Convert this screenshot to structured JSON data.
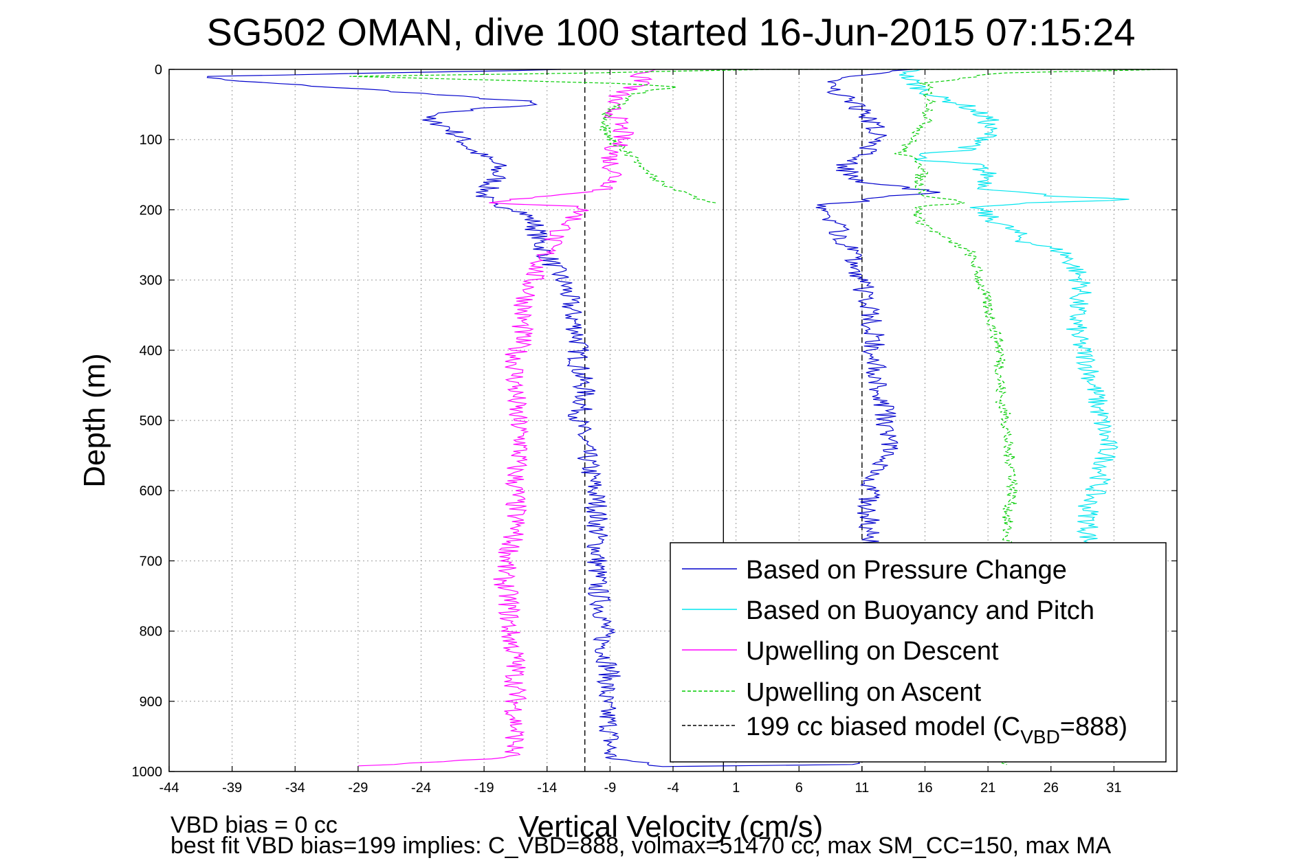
{
  "chart_data": {
    "type": "line",
    "title": "SG502 OMAN, dive 100 started 16-Jun-2015 07:15:24",
    "xlabel": "Vertical Velocity (cm/s)",
    "ylabel": "Depth (m)",
    "xlim": [
      -44,
      36
    ],
    "ylim": [
      1000,
      0
    ],
    "x_ticks": [
      -44,
      -39,
      -34,
      -29,
      -24,
      -19,
      -14,
      -9,
      -4,
      1,
      6,
      11,
      16,
      21,
      26,
      31
    ],
    "y_ticks": [
      0,
      100,
      200,
      300,
      400,
      500,
      600,
      700,
      800,
      900,
      1000
    ],
    "grid": true,
    "legend_position": "bottom-right",
    "reference_lines": [
      {
        "x": 0,
        "style": "solid",
        "color": "#000000"
      },
      {
        "x": -11,
        "style": "dashed",
        "color": "#000000"
      },
      {
        "x": 11,
        "style": "dashed",
        "color": "#000000"
      }
    ],
    "series": [
      {
        "name": "Based on Pressure Change",
        "color": "#0000cc",
        "style": "solid",
        "points": [
          [
            -12,
            0
          ],
          [
            -41,
            10
          ],
          [
            -40,
            15
          ],
          [
            -34,
            22
          ],
          [
            -27,
            30
          ],
          [
            -20,
            40
          ],
          [
            -16,
            45
          ],
          [
            -15,
            50
          ],
          [
            -19,
            55
          ],
          [
            -22,
            62
          ],
          [
            -24,
            72
          ],
          [
            -22,
            80
          ],
          [
            -21,
            95
          ],
          [
            -20,
            115
          ],
          [
            -18,
            135
          ],
          [
            -18,
            155
          ],
          [
            -19,
            175
          ],
          [
            -19,
            190
          ],
          [
            -16,
            200
          ],
          [
            -15,
            220
          ],
          [
            -14.5,
            250
          ],
          [
            -13.5,
            280
          ],
          [
            -12.5,
            310
          ],
          [
            -12,
            350
          ],
          [
            -11.5,
            380
          ],
          [
            -11.5,
            420
          ],
          [
            -11,
            460
          ],
          [
            -11.5,
            500
          ],
          [
            -11,
            540
          ],
          [
            -10.5,
            580
          ],
          [
            -10,
            620
          ],
          [
            -10,
            660
          ],
          [
            -10,
            700
          ],
          [
            -10,
            740
          ],
          [
            -9.5,
            780
          ],
          [
            -9.5,
            820
          ],
          [
            -9,
            860
          ],
          [
            -9.5,
            900
          ],
          [
            -9,
            940
          ],
          [
            -9,
            980
          ],
          [
            -5,
            993
          ],
          [
            10,
            990
          ],
          [
            12,
            985
          ],
          [
            12,
            940
          ],
          [
            12.5,
            900
          ],
          [
            12,
            860
          ],
          [
            13,
            820
          ],
          [
            13,
            780
          ],
          [
            12.5,
            740
          ],
          [
            12,
            700
          ],
          [
            11.5,
            660
          ],
          [
            11.5,
            620
          ],
          [
            12,
            580
          ],
          [
            13,
            540
          ],
          [
            13,
            500
          ],
          [
            12.5,
            460
          ],
          [
            12,
            420
          ],
          [
            12,
            380
          ],
          [
            11.5,
            340
          ],
          [
            11,
            300
          ],
          [
            10.5,
            270
          ],
          [
            9.5,
            240
          ],
          [
            8.5,
            210
          ],
          [
            7.5,
            195
          ],
          [
            14,
            180
          ],
          [
            17,
            175
          ],
          [
            15,
            170
          ],
          [
            11,
            160
          ],
          [
            9.5,
            140
          ],
          [
            11,
            120
          ],
          [
            12.5,
            100
          ],
          [
            12,
            80
          ],
          [
            11,
            60
          ],
          [
            10,
            40
          ],
          [
            8,
            25
          ],
          [
            9,
            12
          ],
          [
            15,
            0
          ]
        ]
      },
      {
        "name": "Based on Buoyancy and Pitch",
        "color": "#00e5ee",
        "style": "solid",
        "points": [
          [
            15,
            0
          ],
          [
            14.5,
            10
          ],
          [
            15.5,
            25
          ],
          [
            17,
            40
          ],
          [
            19,
            50
          ],
          [
            20,
            60
          ],
          [
            21,
            70
          ],
          [
            21,
            100
          ],
          [
            19,
            115
          ],
          [
            15.5,
            120
          ],
          [
            15.5,
            130
          ],
          [
            20,
            135
          ],
          [
            21,
            150
          ],
          [
            21,
            170
          ],
          [
            26,
            180
          ],
          [
            33,
            185
          ],
          [
            24,
            190
          ],
          [
            20,
            195
          ],
          [
            21,
            210
          ],
          [
            23,
            230
          ],
          [
            24,
            245
          ],
          [
            27,
            260
          ],
          [
            28,
            285
          ],
          [
            28.5,
            310
          ],
          [
            28,
            340
          ],
          [
            28,
            380
          ],
          [
            29,
            420
          ],
          [
            29.5,
            460
          ],
          [
            30,
            500
          ],
          [
            30.5,
            540
          ],
          [
            30,
            580
          ],
          [
            29,
            620
          ],
          [
            29,
            660
          ],
          [
            29,
            680
          ]
        ]
      },
      {
        "name": "Upwelling on Descent",
        "color": "#ff00ff",
        "style": "solid",
        "points": [
          [
            -5,
            0
          ],
          [
            -7,
            10
          ],
          [
            -6,
            20
          ],
          [
            -8,
            30
          ],
          [
            -9,
            50
          ],
          [
            -8.5,
            70
          ],
          [
            -8,
            90
          ],
          [
            -8.5,
            110
          ],
          [
            -9,
            130
          ],
          [
            -8.5,
            150
          ],
          [
            -9,
            170
          ],
          [
            -13,
            180
          ],
          [
            -17,
            185
          ],
          [
            -19,
            190
          ],
          [
            -11,
            195
          ],
          [
            -12,
            215
          ],
          [
            -13.5,
            240
          ],
          [
            -14,
            260
          ],
          [
            -15,
            290
          ],
          [
            -15.5,
            320
          ],
          [
            -16,
            350
          ],
          [
            -16,
            380
          ],
          [
            -16.5,
            410
          ],
          [
            -16.5,
            450
          ],
          [
            -16.5,
            490
          ],
          [
            -16,
            530
          ],
          [
            -16.5,
            570
          ],
          [
            -16.5,
            610
          ],
          [
            -16.5,
            650
          ],
          [
            -17,
            690
          ],
          [
            -17.5,
            720
          ],
          [
            -17,
            760
          ],
          [
            -17,
            800
          ],
          [
            -16.5,
            840
          ],
          [
            -16.5,
            880
          ],
          [
            -16.5,
            920
          ],
          [
            -16.5,
            960
          ],
          [
            -17,
            980
          ],
          [
            -29,
            992
          ]
        ]
      },
      {
        "name": "Upwelling on Ascent",
        "color": "#00cc00",
        "style": "dashed",
        "points": [
          [
            -1,
            190
          ],
          [
            -4,
            170
          ],
          [
            -6,
            150
          ],
          [
            -7.5,
            120
          ],
          [
            -9,
            100
          ],
          [
            -9.5,
            80
          ],
          [
            -9,
            60
          ],
          [
            -8,
            45
          ],
          [
            -7,
            35
          ],
          [
            -4,
            25
          ],
          [
            -8,
            20
          ],
          [
            -25,
            12
          ],
          [
            -30,
            10
          ],
          [
            -10,
            5
          ],
          [
            -5,
            3
          ],
          [
            4,
            0
          ],
          [
            22,
            0
          ],
          [
            35,
            0
          ],
          [
            22,
            5
          ],
          [
            16,
            20
          ],
          [
            16.5,
            50
          ],
          [
            16,
            80
          ],
          [
            15,
            100
          ],
          [
            14,
            120
          ],
          [
            16,
            135
          ],
          [
            15.5,
            160
          ],
          [
            16,
            180
          ],
          [
            19.5,
            190
          ],
          [
            15.5,
            195
          ],
          [
            15.5,
            215
          ],
          [
            17.5,
            240
          ],
          [
            19.5,
            260
          ],
          [
            20,
            280
          ],
          [
            20.5,
            310
          ],
          [
            21,
            340
          ],
          [
            21.5,
            370
          ],
          [
            22,
            400
          ],
          [
            22,
            440
          ],
          [
            22,
            470
          ],
          [
            22.5,
            500
          ],
          [
            22.5,
            540
          ],
          [
            23,
            570
          ],
          [
            23,
            600
          ],
          [
            22.5,
            640
          ],
          [
            22.5,
            680
          ],
          [
            22.5,
            990
          ]
        ]
      },
      {
        "name": "199 cc biased model (C",
        "color": "#000000",
        "style": "dashed",
        "points": []
      }
    ],
    "legend": [
      {
        "label": "Based on Pressure Change",
        "color": "#0000cc",
        "style": "solid"
      },
      {
        "label": "Based on Buoyancy and Pitch",
        "color": "#00e5ee",
        "style": "solid"
      },
      {
        "label": "Upwelling on Descent",
        "color": "#ff00ff",
        "style": "solid"
      },
      {
        "label": "Upwelling on Ascent",
        "color": "#00cc00",
        "style": "dashed"
      },
      {
        "label_main": "199 cc biased model (C",
        "label_sub": "VBD",
        "label_tail": "=888)",
        "color": "#000000",
        "style": "dashed"
      }
    ]
  },
  "footer": {
    "line1": "VBD bias = 0 cc",
    "line2": "best fit VBD bias=199 implies: C_VBD=888, volmax=51470 cc, max SM_CC=150, max MA"
  }
}
